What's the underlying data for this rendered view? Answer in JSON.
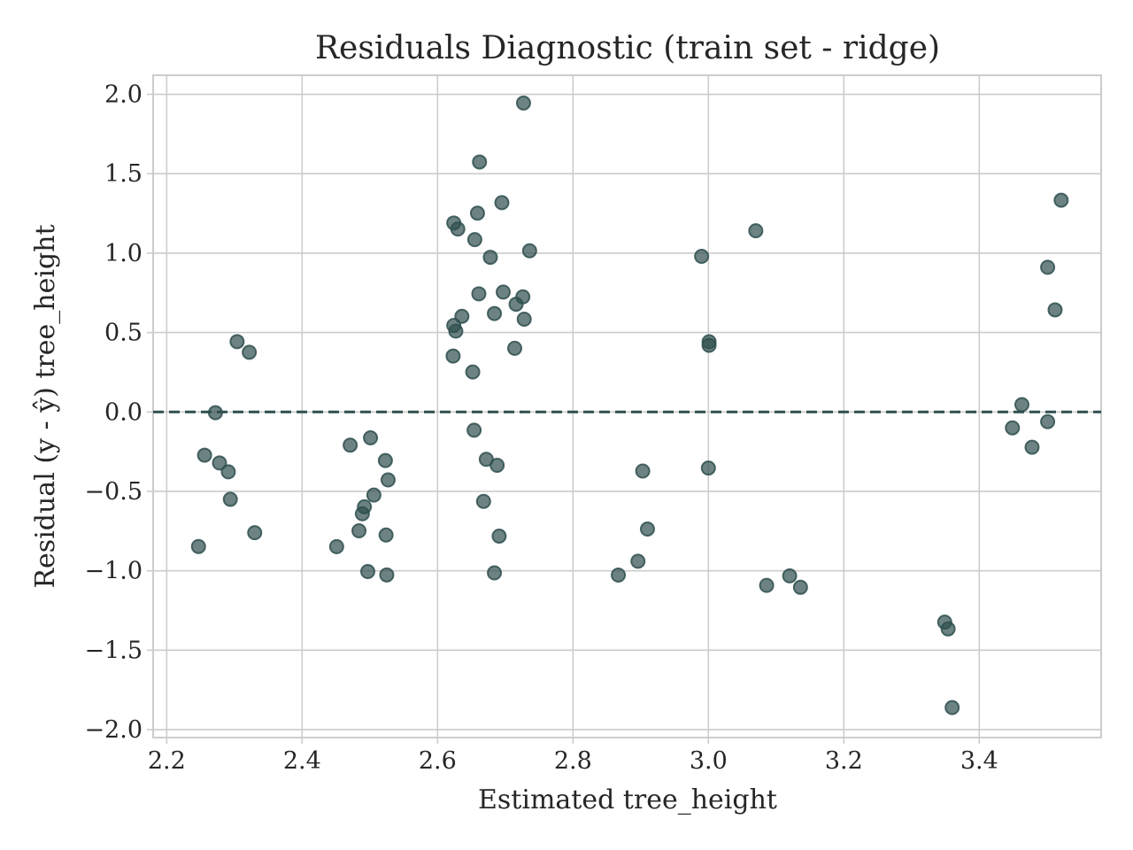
{
  "chart_data": {
    "type": "scatter",
    "title": "Residuals Diagnostic (train set - ridge)",
    "xlabel": "Estimated tree_height",
    "ylabel": "Residual (y - ŷ) tree_height",
    "xlim": [
      2.18,
      3.58
    ],
    "ylim": [
      -2.05,
      2.12
    ],
    "xticks": [
      2.2,
      2.4,
      2.6,
      2.8,
      3.0,
      3.2,
      3.4
    ],
    "xtick_labels": [
      "2.2",
      "2.4",
      "2.6",
      "2.8",
      "3.0",
      "3.2",
      "3.4"
    ],
    "yticks": [
      2.0,
      1.5,
      1.0,
      0.5,
      0.0,
      -0.5,
      -1.0,
      -1.5,
      -2.0
    ],
    "ytick_labels": [
      "2.0",
      "1.5",
      "1.0",
      "0.5",
      "0.0",
      "−0.5",
      "−1.0",
      "−1.5",
      "−2.0"
    ],
    "grid": true,
    "reference_line": {
      "y": 0.0,
      "style": "dashed",
      "color": "#2f4f4f"
    },
    "marker_color": "#2f4f4f",
    "marker_alpha": 0.7,
    "x": [
      2.247,
      2.256,
      2.272,
      2.278,
      2.291,
      2.294,
      2.304,
      2.322,
      2.33,
      2.451,
      2.471,
      2.484,
      2.489,
      2.492,
      2.497,
      2.501,
      2.506,
      2.523,
      2.524,
      2.525,
      2.527,
      2.623,
      2.624,
      2.624,
      2.627,
      2.63,
      2.636,
      2.652,
      2.654,
      2.655,
      2.659,
      2.661,
      2.662,
      2.668,
      2.672,
      2.678,
      2.684,
      2.684,
      2.688,
      2.691,
      2.695,
      2.697,
      2.714,
      2.716,
      2.726,
      2.727,
      2.728,
      2.736,
      2.867,
      2.896,
      2.903,
      2.91,
      2.99,
      3.0,
      3.001,
      3.001,
      3.07,
      3.086,
      3.12,
      3.136,
      3.349,
      3.354,
      3.36,
      3.449,
      3.463,
      3.478,
      3.501,
      3.501,
      3.512,
      3.521
    ],
    "y": [
      -0.847,
      -0.272,
      -0.005,
      -0.321,
      -0.377,
      -0.55,
      0.443,
      0.376,
      -0.76,
      -0.848,
      -0.209,
      -0.748,
      -0.641,
      -0.597,
      -1.005,
      -0.163,
      -0.523,
      -0.306,
      -0.775,
      -1.026,
      -0.428,
      0.352,
      0.545,
      1.19,
      0.509,
      1.152,
      0.602,
      0.252,
      -0.115,
      1.085,
      1.252,
      0.744,
      1.574,
      -0.563,
      -0.298,
      0.974,
      0.62,
      -1.013,
      -0.336,
      -0.782,
      1.318,
      0.755,
      0.401,
      0.678,
      0.725,
      1.945,
      0.584,
      1.015,
      -1.027,
      -0.94,
      -0.372,
      -0.737,
      0.98,
      -0.353,
      0.442,
      0.42,
      1.141,
      -1.092,
      -1.032,
      -1.104,
      -1.323,
      -1.366,
      -1.861,
      -0.1,
      0.046,
      -0.222,
      -0.061,
      0.911,
      0.643,
      1.333
    ]
  }
}
